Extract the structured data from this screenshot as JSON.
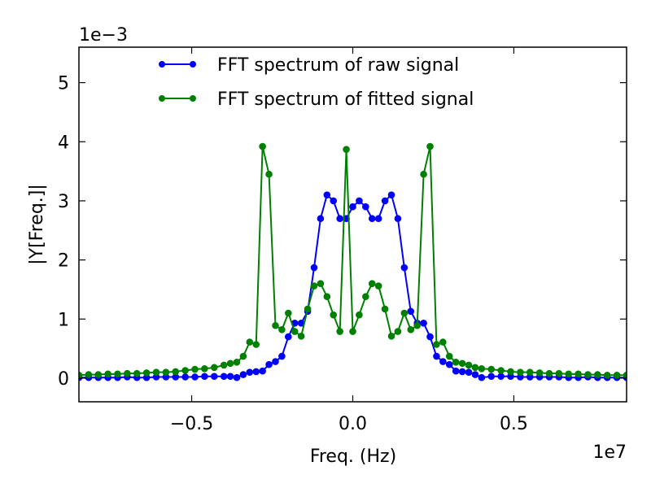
{
  "chart_data": {
    "type": "line",
    "xlabel": "Freq. (Hz)",
    "ylabel": "|Y[Freq.]|",
    "x_offset_label": "1e7",
    "y_offset_label": "1e−3",
    "xlim": [
      -8500000,
      8500000
    ],
    "ylim": [
      -0.0004,
      0.0056
    ],
    "x_ticks": [
      -5000000,
      0,
      5000000
    ],
    "x_tick_labels": [
      "−0.5",
      "0.0",
      "0.5"
    ],
    "y_ticks": [
      0,
      0.001,
      0.002,
      0.003,
      0.004,
      0.005
    ],
    "y_tick_labels": [
      "0",
      "1",
      "2",
      "3",
      "4",
      "5"
    ],
    "grid": false,
    "legend_position": "top",
    "series": [
      {
        "name": "FFT spectrum of raw signal",
        "color": "#0000ff",
        "x": [
          -8500000,
          -8200000,
          -7900000,
          -7600000,
          -7300000,
          -7000000,
          -6700000,
          -6400000,
          -6100000,
          -5800000,
          -5500000,
          -5200000,
          -4900000,
          -4600000,
          -4300000,
          -4000000,
          -3800000,
          -3600000,
          -3400000,
          -3200000,
          -3000000,
          -2800000,
          -2600000,
          -2400000,
          -2200000,
          -2000000,
          -1800000,
          -1600000,
          -1400000,
          -1200000,
          -1000000,
          -800000,
          -600000,
          -400000,
          -200000,
          0,
          200000,
          400000,
          600000,
          800000,
          1000000,
          1200000,
          1400000,
          1600000,
          1800000,
          2000000,
          2200000,
          2400000,
          2600000,
          2800000,
          3000000,
          3200000,
          3400000,
          3600000,
          3800000,
          4000000,
          4300000,
          4600000,
          4900000,
          5200000,
          5500000,
          5800000,
          6100000,
          6400000,
          6700000,
          7000000,
          7300000,
          7600000,
          7900000,
          8200000,
          8500000
        ],
        "y": [
          1e-05,
          1e-05,
          1e-05,
          1e-05,
          1e-05,
          2e-05,
          1e-05,
          1e-05,
          2e-05,
          2e-05,
          2e-05,
          2e-05,
          2e-05,
          3e-05,
          3e-05,
          3e-05,
          3e-05,
          1e-05,
          6e-05,
          0.0001,
          0.00011,
          0.00012,
          0.00023,
          0.00028,
          0.00037,
          0.0007,
          0.00093,
          0.00093,
          0.00113,
          0.00187,
          0.0027,
          0.0031,
          0.003,
          0.0027,
          0.0027,
          0.0029,
          0.003,
          0.0029,
          0.0027,
          0.0027,
          0.003,
          0.0031,
          0.0027,
          0.00187,
          0.00113,
          0.00093,
          0.00093,
          0.0007,
          0.00037,
          0.00028,
          0.00023,
          0.00012,
          0.00011,
          0.0001,
          6e-05,
          1e-05,
          3e-05,
          3e-05,
          3e-05,
          2e-05,
          2e-05,
          2e-05,
          2e-05,
          2e-05,
          1e-05,
          1e-05,
          2e-05,
          1e-05,
          1e-05,
          1e-05,
          1e-05
        ]
      },
      {
        "name": "FFT spectrum of fitted signal",
        "color": "#008000",
        "x": [
          -8500000,
          -8200000,
          -7900000,
          -7600000,
          -7300000,
          -7000000,
          -6700000,
          -6400000,
          -6100000,
          -5800000,
          -5500000,
          -5200000,
          -4900000,
          -4600000,
          -4300000,
          -4000000,
          -3800000,
          -3600000,
          -3400000,
          -3200000,
          -3000000,
          -2800000,
          -2600000,
          -2400000,
          -2200000,
          -2000000,
          -1800000,
          -1600000,
          -1400000,
          -1200000,
          -1000000,
          -800000,
          -600000,
          -400000,
          -200000,
          0,
          200000,
          400000,
          600000,
          800000,
          1000000,
          1200000,
          1400000,
          1600000,
          1800000,
          2000000,
          2200000,
          2400000,
          2600000,
          2800000,
          3000000,
          3200000,
          3400000,
          3600000,
          3800000,
          4000000,
          4300000,
          4600000,
          4900000,
          5200000,
          5500000,
          5800000,
          6100000,
          6400000,
          6700000,
          7000000,
          7300000,
          7600000,
          7900000,
          8200000,
          8500000
        ],
        "y": [
          5e-05,
          6e-05,
          6e-05,
          7e-05,
          7e-05,
          8e-05,
          8e-05,
          9e-05,
          0.0001,
          0.0001,
          0.00011,
          0.00013,
          0.00015,
          0.00016,
          0.00018,
          0.00022,
          0.00025,
          0.00027,
          0.00037,
          0.00061,
          0.00057,
          0.00392,
          0.00345,
          0.00089,
          0.00082,
          0.0011,
          0.00079,
          0.00071,
          0.00117,
          0.00156,
          0.0016,
          0.00138,
          0.00107,
          0.00079,
          0.00387,
          0.00079,
          0.00107,
          0.00138,
          0.0016,
          0.00156,
          0.00117,
          0.00071,
          0.00079,
          0.0011,
          0.00082,
          0.00089,
          0.00345,
          0.00392,
          0.00057,
          0.00061,
          0.00037,
          0.00027,
          0.00025,
          0.00022,
          0.00018,
          0.00016,
          0.00015,
          0.00013,
          0.00011,
          0.0001,
          0.0001,
          9e-05,
          8e-05,
          8e-05,
          7e-05,
          7e-05,
          6e-05,
          6e-05,
          5e-05,
          5e-05,
          5e-05
        ]
      }
    ]
  }
}
